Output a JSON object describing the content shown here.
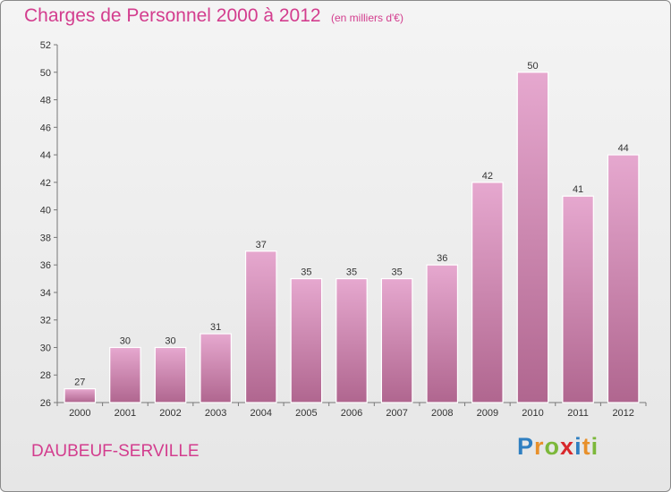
{
  "chart_data": {
    "type": "bar",
    "title": "Charges de Personnel 2000 à 2012",
    "subtitle": "(en milliers d'€)",
    "categories": [
      "2000",
      "2001",
      "2002",
      "2003",
      "2004",
      "2005",
      "2006",
      "2007",
      "2008",
      "2009",
      "2010",
      "2011",
      "2012"
    ],
    "values": [
      27,
      30,
      30,
      31,
      37,
      35,
      35,
      35,
      36,
      42,
      50,
      41,
      44
    ],
    "yticks": [
      "26",
      "28",
      "30",
      "32",
      "34",
      "36",
      "38",
      "40",
      "42",
      "44",
      "46",
      "48",
      "50",
      "52"
    ],
    "ylim": [
      26,
      52
    ],
    "xlabel": "",
    "ylabel": "",
    "grid": false,
    "bar_color_top": "#e6a8cf",
    "bar_color_bottom": "#b0668f"
  },
  "footer": {
    "place": "DAUBEUF-SERVILLE",
    "logo_letters": [
      {
        "char": "P",
        "color": "#2f7fc1"
      },
      {
        "char": "r",
        "color": "#e8902a"
      },
      {
        "char": "o",
        "color": "#7cb83a"
      },
      {
        "char": "x",
        "color": "#d8282c"
      },
      {
        "char": "i",
        "color": "#2f7fc1"
      },
      {
        "char": "t",
        "color": "#e8902a"
      },
      {
        "char": "i",
        "color": "#7cb83a"
      }
    ]
  }
}
